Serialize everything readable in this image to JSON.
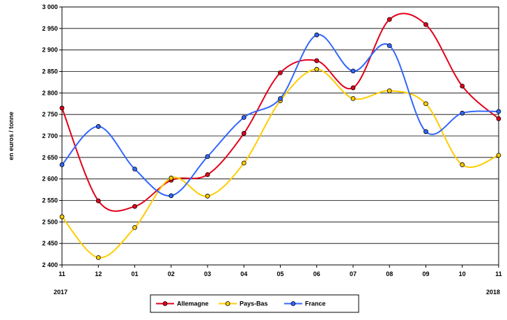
{
  "chart_data": {
    "type": "line",
    "title": "",
    "xlabel": "",
    "ylabel": "en euros / tonne",
    "categories": [
      "11",
      "12",
      "01",
      "02",
      "03",
      "04",
      "05",
      "06",
      "07",
      "08",
      "09",
      "10",
      "11"
    ],
    "year_labels": {
      "start": "2017",
      "end": "2018"
    },
    "ylim": [
      2400,
      3000
    ],
    "ystep": 50,
    "ytick_labels": [
      "2 400",
      "2 450",
      "2 500",
      "2 550",
      "2 600",
      "2 650",
      "2 700",
      "2 750",
      "2 800",
      "2 850",
      "2 900",
      "2 950",
      "3 000"
    ],
    "grid": true,
    "legend_position": "bottom",
    "series": [
      {
        "name": "Allemagne",
        "color": "#e2001a",
        "values": [
          2765,
          2549,
          2536,
          2597,
          2610,
          2706,
          2847,
          2875,
          2812,
          2971,
          2959,
          2816,
          2740
        ]
      },
      {
        "name": "Pays-Bas",
        "color": "#ffcc00",
        "values": [
          2512,
          2417,
          2487,
          2602,
          2560,
          2637,
          2782,
          2855,
          2787,
          2805,
          2775,
          2633,
          2655
        ]
      },
      {
        "name": "France",
        "color": "#3366ff",
        "values": [
          2633,
          2722,
          2623,
          2561,
          2652,
          2743,
          2787,
          2935,
          2851,
          2910,
          2710,
          2753,
          2757
        ]
      }
    ]
  }
}
